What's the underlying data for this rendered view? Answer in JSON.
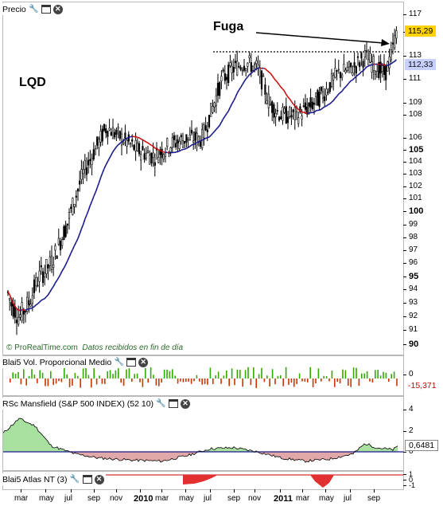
{
  "panels": {
    "price": {
      "title": "Precio",
      "ticker": "LQD",
      "annotation": "Fuga",
      "last_price": "115,29",
      "ma_value": "112,33",
      "source_note": "© ProRealTime.com",
      "source_desc": "Datos recibidos en fin de día",
      "axis_ticks": [
        {
          "label": "117",
          "y": 117
        },
        {
          "label": "115",
          "y": 115
        },
        {
          "label": "113",
          "y": 113
        },
        {
          "label": "111",
          "y": 111
        },
        {
          "label": "109",
          "y": 109
        },
        {
          "label": "108",
          "y": 108
        },
        {
          "label": "106",
          "y": 106
        },
        {
          "label": "105",
          "y": 105,
          "bold": true
        },
        {
          "label": "104",
          "y": 104
        },
        {
          "label": "103",
          "y": 103
        },
        {
          "label": "102",
          "y": 102
        },
        {
          "label": "101",
          "y": 101
        },
        {
          "label": "100",
          "y": 100,
          "bold": true
        },
        {
          "label": "99",
          "y": 99
        },
        {
          "label": "98",
          "y": 98
        },
        {
          "label": "97",
          "y": 97
        },
        {
          "label": "96",
          "y": 96
        },
        {
          "label": "95",
          "y": 95,
          "bold": true
        },
        {
          "label": "94",
          "y": 94
        },
        {
          "label": "93",
          "y": 93
        },
        {
          "label": "92",
          "y": 92
        },
        {
          "label": "91",
          "y": 91
        },
        {
          "label": "90",
          "y": 90,
          "bold": true
        }
      ]
    },
    "volume": {
      "title": "Blai5 Vol. Proporcional Medio",
      "axis_label": "0",
      "value": "-15,371"
    },
    "mansfield": {
      "title": "RSc Mansfield (S&P 500 INDEX) (52 10)",
      "axis_ticks": [
        {
          "label": "4",
          "y": 4
        },
        {
          "label": "2",
          "y": 2
        },
        {
          "label": "0",
          "y": 0
        }
      ],
      "value": "0,6481"
    },
    "atlas": {
      "title": "Blai5 Atlas NT (3)",
      "axis_ticks": [
        {
          "label": "1",
          "y": 1
        },
        {
          "label": "0",
          "y": 0
        },
        {
          "label": "-1",
          "y": -1
        }
      ]
    }
  },
  "x_axis": [
    {
      "label": "mar"
    },
    {
      "label": "may"
    },
    {
      "label": "jul"
    },
    {
      "label": "sep"
    },
    {
      "label": "nov"
    },
    {
      "label": "2010",
      "bold": true
    },
    {
      "label": "mar"
    },
    {
      "label": "may"
    },
    {
      "label": "jul"
    },
    {
      "label": "sep"
    },
    {
      "label": "nov"
    },
    {
      "label": "2011",
      "bold": true
    },
    {
      "label": "mar"
    },
    {
      "label": "may"
    },
    {
      "label": "jul"
    },
    {
      "label": "sep"
    }
  ],
  "colors": {
    "ma_blue": "#1a1a8c",
    "ma_red": "#cc1111",
    "candle": "#000000",
    "vol_green": "#33aa00",
    "vol_red": "#cc3300",
    "rs_fill_green": "#a8e0a0",
    "rs_fill_red": "#e0a8a8",
    "last_tag": "#ffd200",
    "ma_tag": "#c8d0ff"
  },
  "icons": [
    "wrench-icon",
    "window-icon",
    "close-icon"
  ]
}
